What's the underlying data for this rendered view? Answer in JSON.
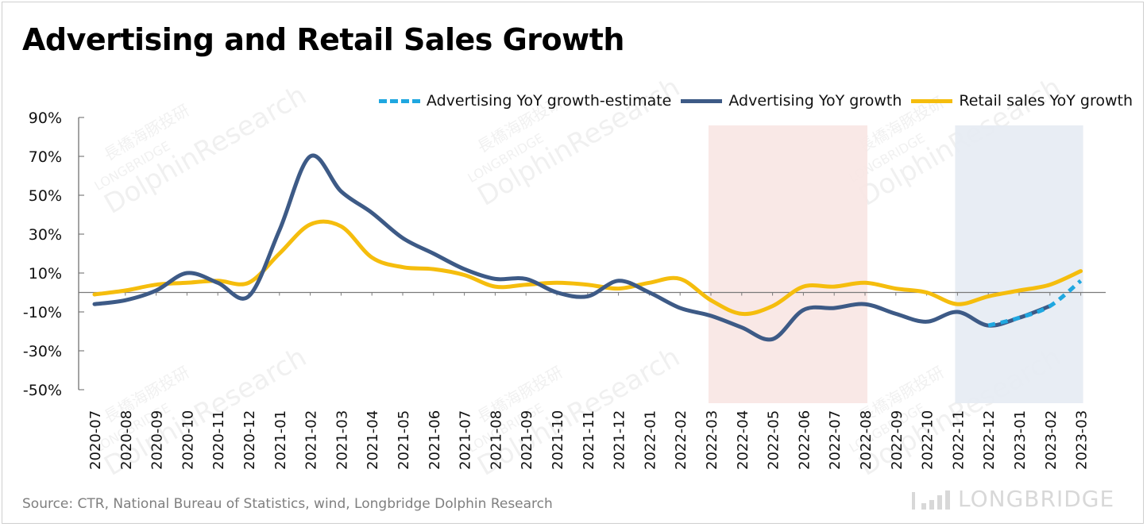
{
  "title": "Advertising and Retail Sales Growth",
  "source": "Source: CTR, National Bureau of Statistics, wind, Longbridge Dolphin Research",
  "brand": "LONGBRIDGE",
  "watermark": {
    "cn": "長橋海豚投研",
    "en": "LONGBRIDGE",
    "name": "DolphinResearch"
  },
  "colors": {
    "estimate": "#1fa7e0",
    "advertising": "#3d5a86",
    "retail": "#f5bd0d",
    "shade_red": "#f8e6e3",
    "shade_blue": "#e6ebf3"
  },
  "chart_data": {
    "type": "line",
    "categories": [
      "2020-07",
      "2020-08",
      "2020-09",
      "2020-10",
      "2020-11",
      "2020-12",
      "2021-01",
      "2021-02",
      "2021-03",
      "2021-04",
      "2021-05",
      "2021-06",
      "2021-07",
      "2021-08",
      "2021-09",
      "2021-10",
      "2021-11",
      "2021-12",
      "2022-01",
      "2022-02",
      "2022-03",
      "2022-04",
      "2022-05",
      "2022-06",
      "2022-07",
      "2022-08",
      "2022-09",
      "2022-10",
      "2022-11",
      "2022-12",
      "2023-01",
      "2023-02",
      "2023-03"
    ],
    "y_ticks": [
      "90%",
      "70%",
      "50%",
      "30%",
      "10%",
      "-10%",
      "-30%",
      "-50%"
    ],
    "ylim": [
      -50,
      90
    ],
    "series": [
      {
        "name": "Advertising YoY growth-estimate",
        "style": "dashed",
        "color": "#1fa7e0",
        "points": [
          [
            29,
            -17
          ],
          [
            30,
            -13
          ],
          [
            31,
            -7
          ],
          [
            32,
            6
          ]
        ]
      },
      {
        "name": "Advertising YoY growth",
        "style": "solid",
        "color": "#3d5a86",
        "values": [
          -6,
          -4,
          1,
          10,
          5,
          -2,
          32,
          70,
          52,
          41,
          28,
          20,
          12,
          7,
          7,
          0,
          -2,
          6,
          0,
          -8,
          -12,
          -18,
          -24,
          -9,
          -8,
          -6,
          -11,
          -15,
          -10,
          -17,
          -13,
          -7,
          null
        ]
      },
      {
        "name": "Retail sales YoY growth",
        "style": "solid",
        "color": "#f5bd0d",
        "values": [
          -1,
          1,
          4,
          5,
          6,
          5,
          20,
          35,
          34,
          18,
          13,
          12,
          9,
          3,
          4,
          5,
          4,
          2,
          5,
          7,
          -4,
          -11,
          -7,
          3,
          3,
          5,
          2,
          0,
          -6,
          -2,
          1,
          4,
          11
        ]
      }
    ],
    "shaded_ranges": [
      {
        "from": "2022-03",
        "to": "2022-08",
        "color": "#f8e6e3"
      },
      {
        "from": "2022-11",
        "to": "2023-03",
        "color": "#e6ebf3"
      }
    ],
    "grid": false,
    "legend": "top-right"
  }
}
